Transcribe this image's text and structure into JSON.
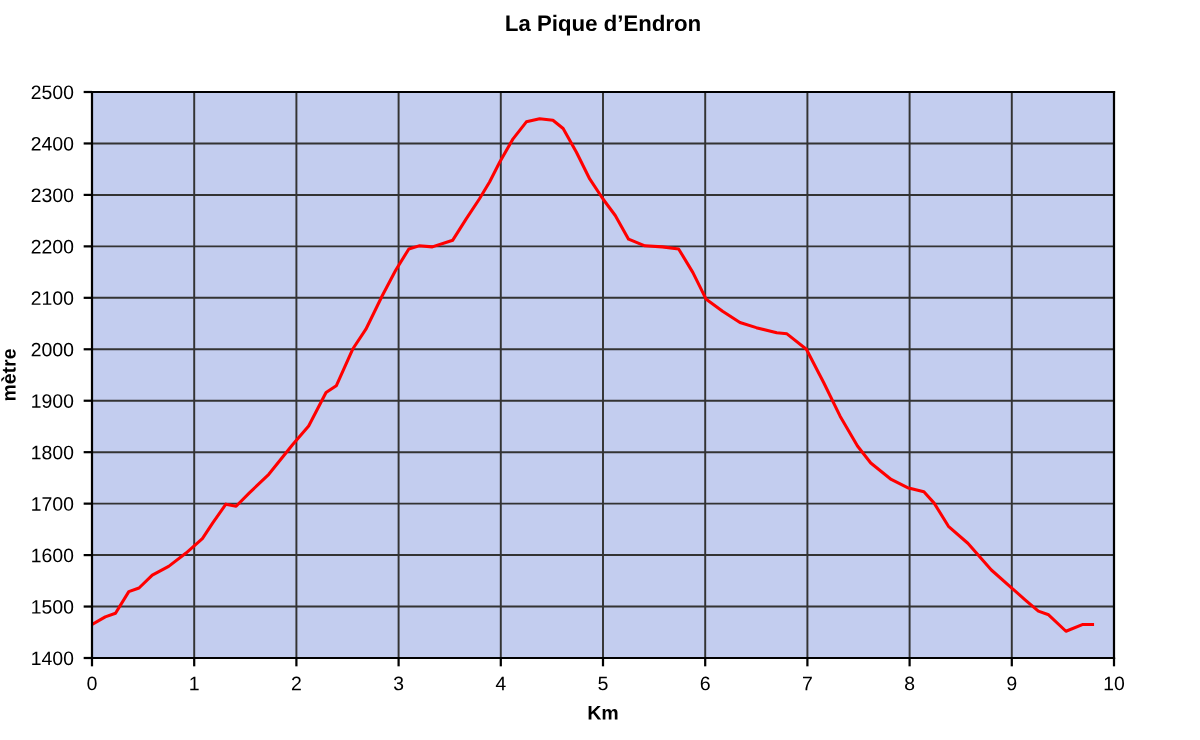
{
  "chart_data": {
    "type": "line",
    "title": "La Pique d’Endron",
    "xlabel": "Km",
    "ylabel": "mètre",
    "xlim": [
      0,
      10
    ],
    "ylim": [
      1400,
      2500
    ],
    "xticks": [
      0,
      1,
      2,
      3,
      4,
      5,
      6,
      7,
      8,
      9,
      10
    ],
    "yticks": [
      1400,
      1500,
      1600,
      1700,
      1800,
      1900,
      2000,
      2100,
      2200,
      2300,
      2400,
      2500
    ],
    "grid": true,
    "marker": "none",
    "line_style": "solid",
    "series": [
      {
        "color": "#ff0000",
        "x": [
          0,
          0.13,
          0.23,
          0.36,
          0.46,
          0.59,
          0.75,
          0.92,
          1.08,
          1.18,
          1.31,
          1.41,
          1.54,
          1.73,
          1.96,
          2.12,
          2.29,
          2.39,
          2.55,
          2.68,
          2.84,
          2.97,
          3.1,
          3.2,
          3.33,
          3.53,
          3.66,
          3.79,
          3.89,
          3.99,
          4.12,
          4.25,
          4.38,
          4.51,
          4.61,
          4.74,
          4.87,
          5.0,
          5.12,
          5.25,
          5.41,
          5.58,
          5.74,
          5.88,
          6.01,
          6.17,
          6.34,
          6.5,
          6.7,
          6.8,
          6.99,
          7.16,
          7.32,
          7.49,
          7.62,
          7.82,
          7.98,
          8.14,
          8.24,
          8.38,
          8.57,
          8.8,
          9.0,
          9.13,
          9.26,
          9.36,
          9.53,
          9.69,
          9.79
        ],
        "values": [
          1465,
          1480,
          1487,
          1529,
          1536,
          1561,
          1578,
          1604,
          1632,
          1662,
          1699,
          1695,
          1721,
          1757,
          1814,
          1851,
          1916,
          1929,
          2000,
          2039,
          2104,
          2153,
          2195,
          2201,
          2199,
          2212,
          2253,
          2292,
          2325,
          2364,
          2409,
          2442,
          2448,
          2445,
          2429,
          2383,
          2331,
          2292,
          2260,
          2214,
          2201,
          2199,
          2195,
          2149,
          2097,
          2074,
          2052,
          2042,
          2032,
          2030,
          2000,
          1935,
          1870,
          1812,
          1779,
          1747,
          1731,
          1723,
          1701,
          1656,
          1623,
          1571,
          1536,
          1513,
          1491,
          1484,
          1452,
          1465,
          1465
        ]
      }
    ]
  }
}
